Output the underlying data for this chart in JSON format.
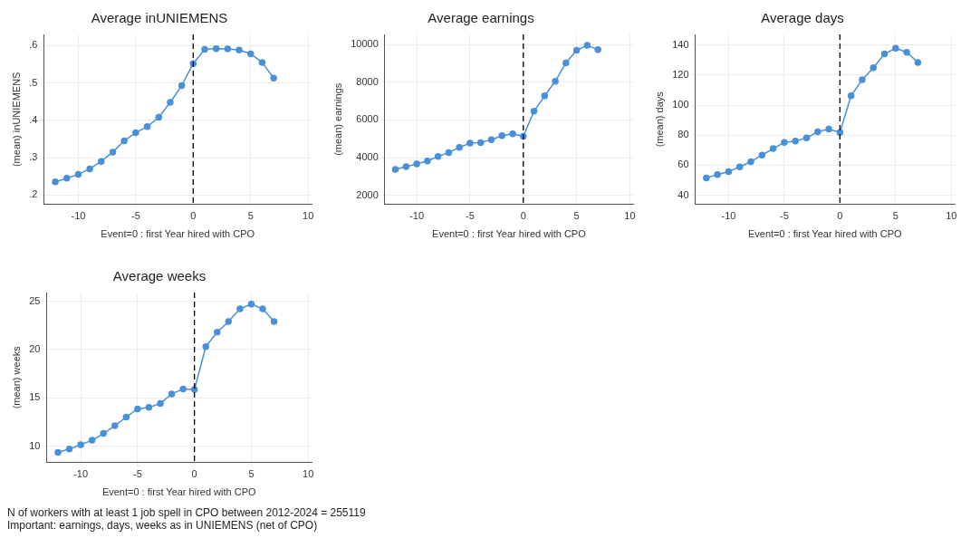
{
  "chart_data": [
    {
      "type": "line",
      "title": "Average inUNIEMENS",
      "xlabel": "Event=0 : first Year hired with CPO",
      "ylabel": "(mean) inUNIEMENS",
      "x": [
        -12,
        -11,
        -10,
        -9,
        -8,
        -7,
        -6,
        -5,
        -4,
        -3,
        -2,
        -1,
        0,
        1,
        2,
        3,
        4,
        5,
        6,
        7
      ],
      "values": [
        0.235,
        0.245,
        0.255,
        0.27,
        0.29,
        0.315,
        0.345,
        0.367,
        0.383,
        0.408,
        0.448,
        0.493,
        0.552,
        0.59,
        0.592,
        0.591,
        0.588,
        0.578,
        0.555,
        0.513
      ],
      "color": "#4a90d9",
      "marker": "circle",
      "line_style": "solid",
      "grid": true,
      "xlim": [
        -13,
        10.3
      ],
      "xticks": [
        -10,
        -5,
        0,
        5,
        10
      ],
      "ylim": [
        0.175,
        0.63
      ],
      "yticks": [
        {
          "value": 0.2,
          "label": ".2"
        },
        {
          "value": 0.3,
          "label": ".3"
        },
        {
          "value": 0.4,
          "label": ".4"
        },
        {
          "value": 0.5,
          "label": ".5"
        },
        {
          "value": 0.6,
          "label": ".6"
        }
      ],
      "ref_lines": [
        {
          "axis": "x",
          "value": 0,
          "color": "#000000",
          "line_style": "dashed"
        }
      ]
    },
    {
      "type": "line",
      "title": "Average earnings",
      "xlabel": "Event=0 : first Year hired with CPO",
      "ylabel": "(mean) earnings",
      "x": [
        -12,
        -11,
        -10,
        -9,
        -8,
        -7,
        -6,
        -5,
        -4,
        -3,
        -2,
        -1,
        0,
        1,
        2,
        3,
        4,
        5,
        6,
        7
      ],
      "values": [
        3380,
        3520,
        3660,
        3820,
        4060,
        4270,
        4540,
        4770,
        4800,
        4950,
        5170,
        5260,
        5130,
        6460,
        7280,
        8050,
        9030,
        9700,
        9960,
        9730
      ],
      "color": "#4a90d9",
      "marker": "circle",
      "line_style": "solid",
      "grid": true,
      "xlim": [
        -13,
        10.3
      ],
      "xticks": [
        -10,
        -5,
        0,
        5,
        10
      ],
      "ylim": [
        1520,
        10540
      ],
      "yticks": [
        2000,
        4000,
        6000,
        8000,
        10000
      ],
      "ref_lines": [
        {
          "axis": "x",
          "value": 0,
          "color": "#000000",
          "line_style": "dashed"
        }
      ]
    },
    {
      "type": "line",
      "title": "Average days",
      "xlabel": "Event=0 : first Year hired with CPO",
      "ylabel": "(mean) days",
      "x": [
        -12,
        -11,
        -10,
        -9,
        -8,
        -7,
        -6,
        -5,
        -4,
        -3,
        -2,
        -1,
        0,
        1,
        2,
        3,
        4,
        5,
        6,
        7
      ],
      "values": [
        51.6,
        53.8,
        55.8,
        58.9,
        62.4,
        66.7,
        71.1,
        75.1,
        76,
        78.2,
        82.2,
        84,
        81.8,
        106.2,
        116.9,
        124.9,
        134,
        137.8,
        135.1,
        128.4
      ],
      "color": "#4a90d9",
      "marker": "circle",
      "line_style": "solid",
      "grid": true,
      "xlim": [
        -13,
        10.3
      ],
      "xticks": [
        -10,
        -5,
        0,
        5,
        10
      ],
      "ylim": [
        34,
        147
      ],
      "yticks": [
        40,
        60,
        80,
        100,
        120,
        140
      ],
      "ref_lines": [
        {
          "axis": "x",
          "value": 0,
          "color": "#000000",
          "line_style": "dashed"
        }
      ]
    },
    {
      "type": "line",
      "title": "Average weeks",
      "xlabel": "Event=0 : first Year hired with CPO",
      "ylabel": "(mean) weeks",
      "x": [
        -12,
        -11,
        -10,
        -9,
        -8,
        -7,
        -6,
        -5,
        -4,
        -3,
        -2,
        -1,
        0,
        1,
        2,
        3,
        4,
        5,
        6,
        7
      ],
      "values": [
        9.34,
        9.69,
        10.14,
        10.6,
        11.3,
        12.1,
        13,
        13.85,
        14,
        14.4,
        15.4,
        15.9,
        15.85,
        20.3,
        21.8,
        22.9,
        24.2,
        24.7,
        24.2,
        22.9
      ],
      "color": "#4a90d9",
      "marker": "circle",
      "line_style": "solid",
      "grid": true,
      "xlim": [
        -13,
        10.3
      ],
      "xticks": [
        -10,
        -5,
        0,
        5,
        10
      ],
      "ylim": [
        8.3,
        25.9
      ],
      "yticks": [
        10,
        15,
        20,
        25
      ],
      "ref_lines": [
        {
          "axis": "x",
          "value": 0,
          "color": "#000000",
          "line_style": "dashed"
        }
      ],
      "annotations": [
        "N of workers with at least 1 job spell in CPO between 2012-2024 = 255119",
        "Important: earnings, days, weeks as in UNIEMENS (net of CPO)"
      ]
    }
  ]
}
